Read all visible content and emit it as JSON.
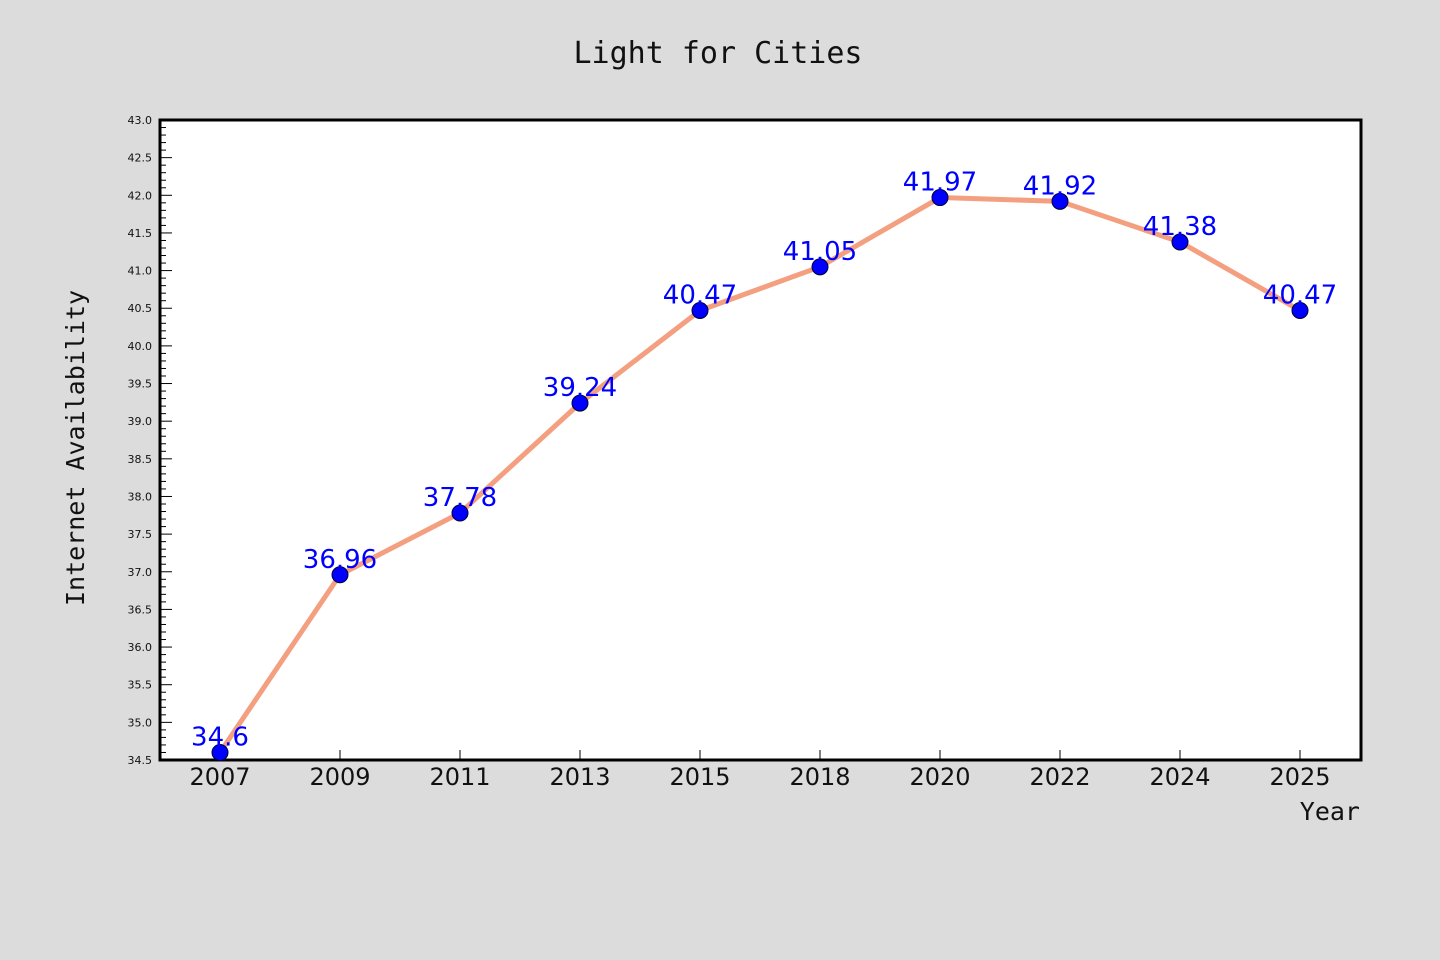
{
  "chart_data": {
    "type": "line",
    "title": "Light for Cities",
    "xlabel": "Year",
    "ylabel": "Internet Availability",
    "categories": [
      "2007",
      "2009",
      "2011",
      "2013",
      "2015",
      "2018",
      "2020",
      "2022",
      "2024",
      "2025"
    ],
    "series": [
      {
        "values": [
          34.6,
          36.96,
          37.78,
          39.24,
          40.47,
          41.05,
          41.97,
          41.92,
          41.38,
          40.47
        ],
        "labels": [
          "34.6",
          "36.96",
          "37.78",
          "39.24",
          "40.47",
          "41.05",
          "41.97",
          "41.92",
          "41.38",
          "40.47"
        ],
        "line_color": "#f4a080",
        "marker_color": "#0000ff"
      }
    ],
    "ylim": [
      34.5,
      43.0
    ],
    "yticks": [
      "34.5",
      "35.0",
      "35.5",
      "36.0",
      "36.5",
      "37.0",
      "37.5",
      "38.0",
      "38.5",
      "39.0",
      "39.5",
      "40.0",
      "40.5",
      "41.0",
      "41.5",
      "42.0",
      "42.5",
      "43.0"
    ],
    "grid": false,
    "colors": {
      "background": "#dcdcdc",
      "plot_background": "#ffffff",
      "data_label": "#0000ff"
    }
  }
}
